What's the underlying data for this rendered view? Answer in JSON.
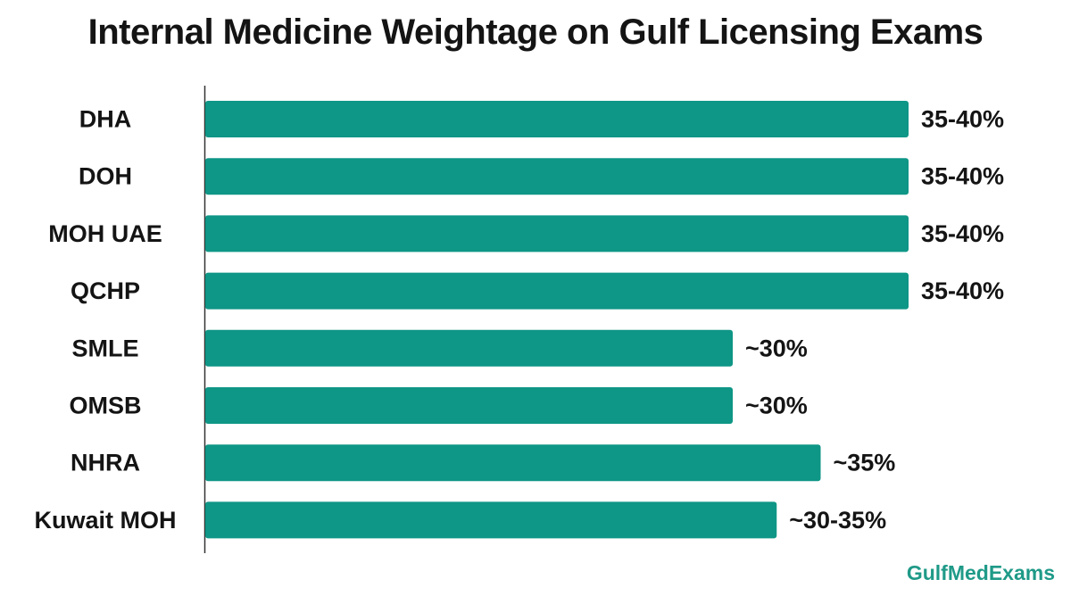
{
  "chart_data": {
    "type": "bar",
    "orientation": "horizontal",
    "title": "Internal Medicine Weightage on Gulf Licensing Exams",
    "categories": [
      "DHA",
      "DOH",
      "MOH UAE",
      "QCHP",
      "SMLE",
      "OMSB",
      "NHRA",
      "Kuwait MOH"
    ],
    "values": [
      40,
      40,
      40,
      40,
      30,
      30,
      35,
      32.5
    ],
    "value_labels": [
      "35-40%",
      "35-40%",
      "35-40%",
      "35-40%",
      "~30%",
      "~30%",
      "~35%",
      "~30-35%"
    ],
    "xlabel": "",
    "ylabel": "",
    "xlim": [
      0,
      40
    ],
    "grid": false,
    "bar_color": "#0e9686"
  },
  "watermark": "GulfMedExams"
}
